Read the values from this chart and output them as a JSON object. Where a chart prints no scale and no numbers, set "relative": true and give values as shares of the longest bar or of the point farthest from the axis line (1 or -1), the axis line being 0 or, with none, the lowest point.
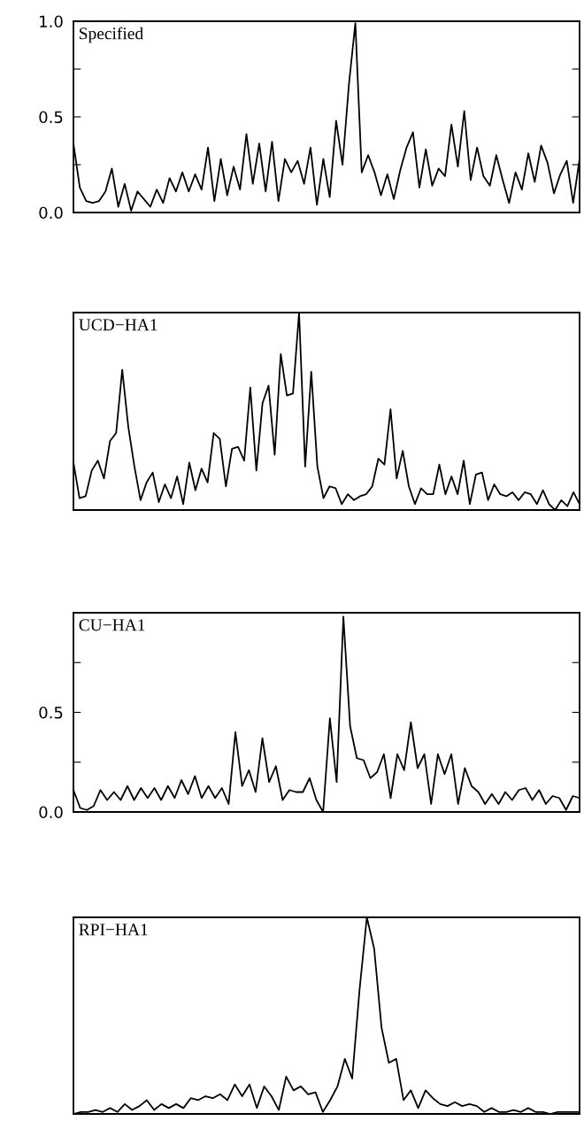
{
  "chart_data": [
    {
      "type": "line",
      "annotations": [
        "Specified"
      ],
      "tick_labels": "y",
      "ylim": [
        0,
        1
      ],
      "yticks": [
        {
          "value": 0,
          "label": "0.0"
        },
        {
          "value": 0.25,
          "label": null
        },
        {
          "value": 0.5,
          "label": "0.5"
        },
        {
          "value": 0.75,
          "label": null
        },
        {
          "value": 1,
          "label": "1.0"
        }
      ],
      "categories": [
        null,
        null,
        null,
        null,
        null,
        null,
        null,
        null,
        null,
        null,
        null,
        null,
        null,
        null,
        null,
        null,
        null,
        null,
        null,
        null,
        null,
        null,
        null,
        null,
        null,
        null,
        null,
        null,
        null,
        null,
        null,
        null,
        null,
        null,
        null,
        null,
        null,
        null,
        null,
        null,
        null,
        null,
        null,
        null,
        null,
        null,
        null,
        null,
        null,
        null,
        null,
        null,
        null,
        null,
        null,
        null,
        null,
        null,
        null,
        null,
        null,
        null,
        null,
        null,
        null,
        null,
        null,
        null,
        null,
        null,
        null,
        null,
        null,
        null,
        null,
        null,
        null,
        null,
        null,
        null
      ],
      "series": [
        {
          "color": "#000000",
          "values": [
            0.36,
            0.13,
            0.06,
            0.05,
            0.06,
            0.11,
            0.23,
            0.03,
            0.15,
            0.01,
            0.11,
            0.07,
            0.03,
            0.12,
            0.05,
            0.18,
            0.11,
            0.21,
            0.11,
            0.2,
            0.12,
            0.34,
            0.06,
            0.28,
            0.09,
            0.24,
            0.12,
            0.41,
            0.15,
            0.36,
            0.11,
            0.37,
            0.06,
            0.28,
            0.21,
            0.27,
            0.15,
            0.34,
            0.04,
            0.28,
            0.08,
            0.48,
            0.25,
            0.67,
            0.99,
            0.21,
            0.3,
            0.21,
            0.09,
            0.2,
            0.07,
            0.22,
            0.34,
            0.42,
            0.13,
            0.33,
            0.14,
            0.23,
            0.19,
            0.46,
            0.24,
            0.53,
            0.17,
            0.34,
            0.19,
            0.14,
            0.3,
            0.17,
            0.05,
            0.21,
            0.12,
            0.31,
            0.16,
            0.35,
            0.26,
            0.1,
            0.2,
            0.27,
            0.05,
            0.28
          ]
        }
      ]
    },
    {
      "type": "line",
      "annotations": [
        "UCD−HA1"
      ],
      "tick_labels": false,
      "relative": true,
      "categories": [
        null,
        null,
        null,
        null,
        null,
        null,
        null,
        null,
        null,
        null,
        null,
        null,
        null,
        null,
        null,
        null,
        null,
        null,
        null,
        null,
        null,
        null,
        null,
        null,
        null,
        null,
        null,
        null,
        null,
        null,
        null,
        null,
        null,
        null,
        null,
        null,
        null,
        null,
        null,
        null,
        null,
        null,
        null,
        null,
        null,
        null,
        null,
        null,
        null,
        null,
        null,
        null,
        null,
        null,
        null,
        null,
        null,
        null,
        null,
        null,
        null,
        null,
        null,
        null,
        null,
        null,
        null,
        null,
        null,
        null,
        null,
        null,
        null,
        null,
        null,
        null,
        null,
        null,
        null,
        null,
        null,
        null,
        null,
        null
      ],
      "series": [
        {
          "color": "#000000",
          "values": [
            0.24,
            0.06,
            0.07,
            0.2,
            0.25,
            0.16,
            0.35,
            0.39,
            0.71,
            0.42,
            0.22,
            0.05,
            0.14,
            0.19,
            0.04,
            0.13,
            0.06,
            0.17,
            0.03,
            0.24,
            0.1,
            0.21,
            0.14,
            0.39,
            0.36,
            0.12,
            0.31,
            0.32,
            0.25,
            0.62,
            0.2,
            0.54,
            0.63,
            0.28,
            0.79,
            0.58,
            0.59,
            1,
            0.22,
            0.7,
            0.22,
            0.06,
            0.12,
            0.11,
            0.03,
            0.08,
            0.05,
            0.07,
            0.08,
            0.12,
            0.26,
            0.23,
            0.51,
            0.16,
            0.3,
            0.12,
            0.03,
            0.11,
            0.08,
            0.08,
            0.23,
            0.08,
            0.17,
            0.08,
            0.25,
            0.03,
            0.18,
            0.19,
            0.05,
            0.13,
            0.08,
            0.07,
            0.09,
            0.05,
            0.09,
            0.08,
            0.03,
            0.1,
            0.03,
            0.0,
            0.05,
            0.02,
            0.09,
            0.03
          ]
        }
      ]
    },
    {
      "type": "line",
      "annotations": [
        "CU−HA1"
      ],
      "tick_labels": "y",
      "ylim": [
        0,
        1
      ],
      "yticks": [
        {
          "value": 0,
          "label": "0.0"
        },
        {
          "value": 0.25,
          "label": null
        },
        {
          "value": 0.5,
          "label": "0.5"
        },
        {
          "value": 0.75,
          "label": null
        }
      ],
      "categories": [
        null,
        null,
        null,
        null,
        null,
        null,
        null,
        null,
        null,
        null,
        null,
        null,
        null,
        null,
        null,
        null,
        null,
        null,
        null,
        null,
        null,
        null,
        null,
        null,
        null,
        null,
        null,
        null,
        null,
        null,
        null,
        null,
        null,
        null,
        null,
        null,
        null,
        null,
        null,
        null,
        null,
        null,
        null,
        null,
        null,
        null,
        null,
        null,
        null,
        null,
        null,
        null,
        null,
        null,
        null,
        null,
        null,
        null,
        null,
        null,
        null,
        null,
        null,
        null,
        null,
        null,
        null,
        null,
        null,
        null,
        null,
        null,
        null,
        null,
        null,
        null
      ],
      "series": [
        {
          "color": "#000000",
          "values": [
            0.11,
            0.02,
            0.01,
            0.03,
            0.11,
            0.06,
            0.1,
            0.06,
            0.13,
            0.06,
            0.12,
            0.07,
            0.12,
            0.06,
            0.13,
            0.07,
            0.16,
            0.09,
            0.18,
            0.07,
            0.13,
            0.07,
            0.12,
            0.04,
            0.4,
            0.13,
            0.21,
            0.1,
            0.37,
            0.15,
            0.23,
            0.06,
            0.11,
            0.1,
            0.1,
            0.17,
            0.06,
            0.0,
            0.47,
            0.15,
            0.98,
            0.43,
            0.27,
            0.26,
            0.17,
            0.2,
            0.29,
            0.07,
            0.29,
            0.21,
            0.45,
            0.22,
            0.29,
            0.04,
            0.29,
            0.19,
            0.29,
            0.04,
            0.22,
            0.13,
            0.1,
            0.04,
            0.09,
            0.04,
            0.1,
            0.06,
            0.11,
            0.12,
            0.06,
            0.11,
            0.04,
            0.08,
            0.07,
            0.01,
            0.08,
            0.07
          ]
        }
      ]
    },
    {
      "type": "line",
      "annotations": [
        "RPI−HA1"
      ],
      "tick_labels": false,
      "relative": true,
      "categories": [
        null,
        null,
        null,
        null,
        null,
        null,
        null,
        null,
        null,
        null,
        null,
        null,
        null,
        null,
        null,
        null,
        null,
        null,
        null,
        null,
        null,
        null,
        null,
        null,
        null,
        null,
        null,
        null,
        null,
        null,
        null,
        null,
        null,
        null,
        null,
        null,
        null,
        null,
        null,
        null,
        null,
        null,
        null,
        null,
        null,
        null,
        null,
        null,
        null,
        null,
        null,
        null,
        null,
        null,
        null,
        null,
        null,
        null,
        null,
        null,
        null,
        null,
        null,
        null,
        null,
        null,
        null,
        null,
        null,
        null
      ],
      "series": [
        {
          "color": "#000000",
          "values": [
            0,
            0.01,
            0.01,
            0.02,
            0.01,
            0.03,
            0.01,
            0.05,
            0.02,
            0.04,
            0.07,
            0.02,
            0.05,
            0.03,
            0.05,
            0.03,
            0.08,
            0.07,
            0.09,
            0.08,
            0.1,
            0.07,
            0.15,
            0.09,
            0.15,
            0.03,
            0.14,
            0.09,
            0.02,
            0.19,
            0.12,
            0.14,
            0.1,
            0.11,
            0.01,
            0.07,
            0.14,
            0.28,
            0.18,
            0.63,
            1,
            0.84,
            0.44,
            0.26,
            0.28,
            0.07,
            0.12,
            0.03,
            0.12,
            0.08,
            0.05,
            0.04,
            0.06,
            0.04,
            0.05,
            0.04,
            0.01,
            0.03,
            0.01,
            0.01,
            0.02,
            0.01,
            0.03,
            0.01,
            0.01,
            0,
            0.01,
            0.01,
            0.01,
            0.01
          ]
        }
      ]
    }
  ]
}
